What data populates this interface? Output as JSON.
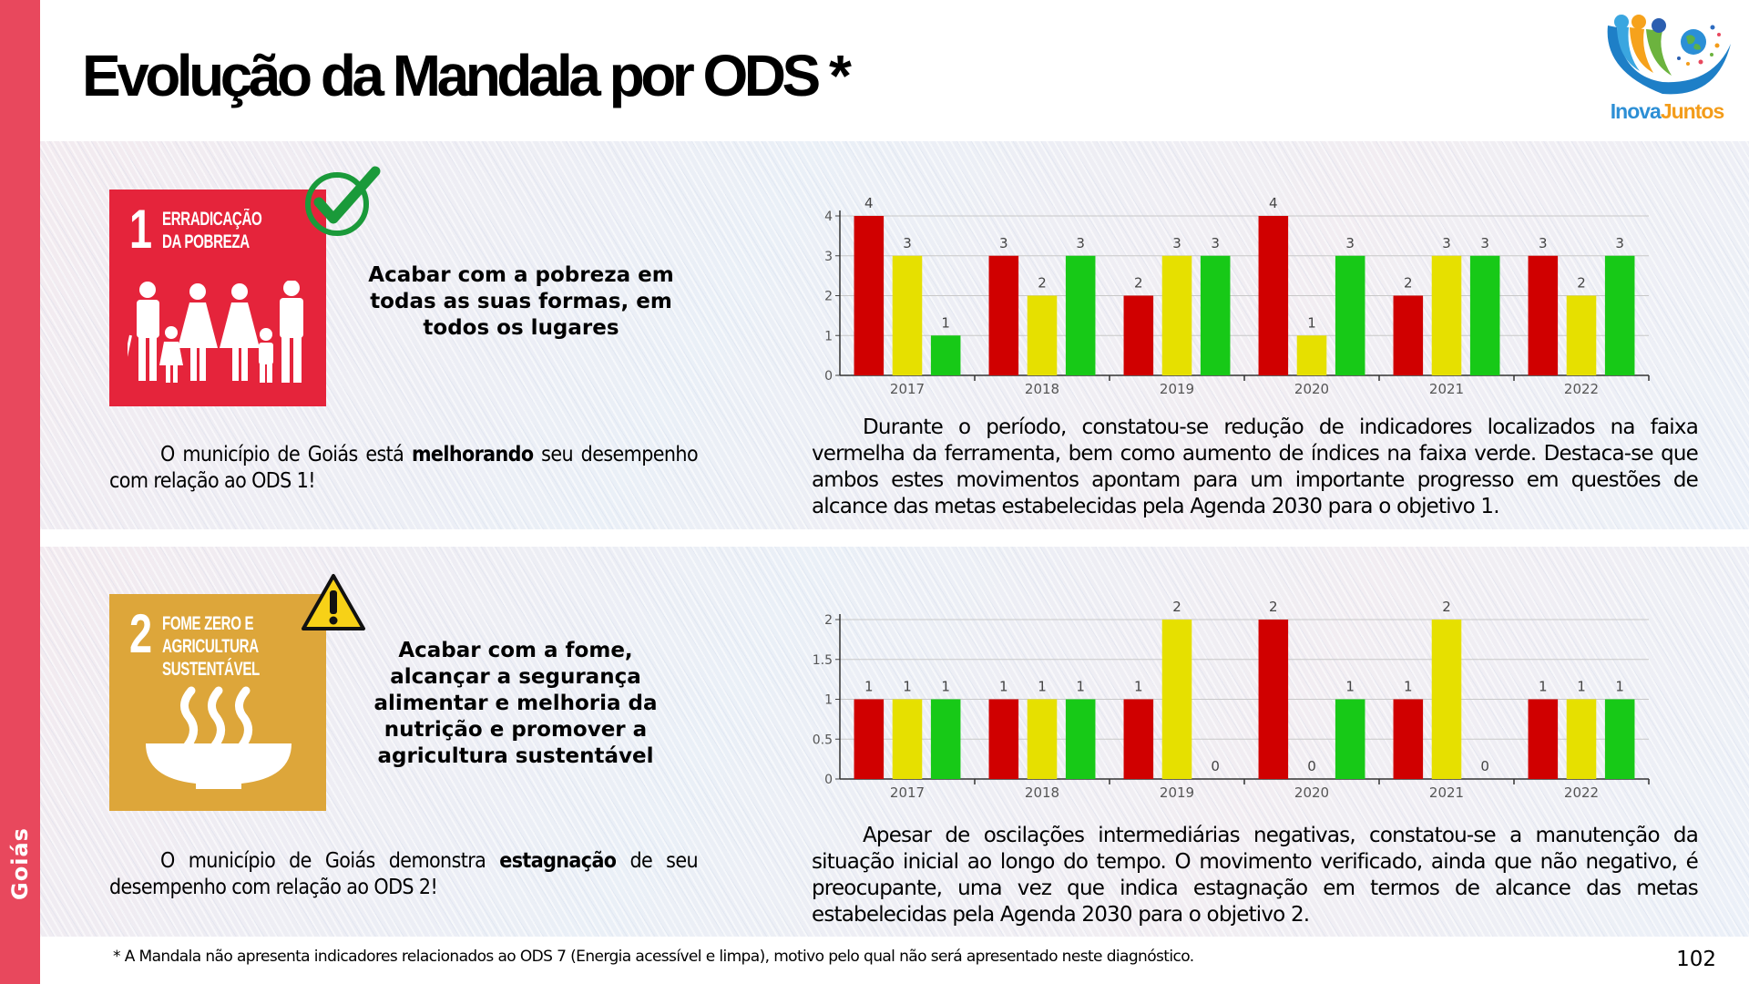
{
  "sidebar": {
    "label": "Goiás",
    "color": "#e8485d"
  },
  "title": "Evolução da Mandala por ODS *",
  "logo": {
    "text_a": "Inova",
    "text_b": "Juntos"
  },
  "colors": {
    "red": "#d00000",
    "yellow": "#e6e000",
    "green": "#17c917",
    "sdg1": "#e5243b",
    "sdg2": "#dda63a"
  },
  "sections": [
    {
      "sdg": {
        "number": "1",
        "name": "ERRADICAÇÃO\nDA POBREZA",
        "icon": "family-icon"
      },
      "status_icon": "check-icon",
      "goal": "Acabar com a pobreza em todas as suas formas, em todos os lugares",
      "verdict": {
        "pre": "O município de Goiás está ",
        "bold": "melhorando",
        "post": " seu desempenho com relação ao ODS 1!"
      },
      "analysis": "Durante o período, constatou-se redução de indicadores localizados na faixa vermelha da ferramenta, bem como aumento de índices na faixa verde. Destaca-se que ambos estes movimentos apontam para um importante progresso em questões de alcance das metas estabelecidas pela Agenda 2030 para o objetivo 1."
    },
    {
      "sdg": {
        "number": "2",
        "name": "FOME ZERO E\nAGRICULTURA\nSUSTENTÁVEL",
        "icon": "bowl-icon"
      },
      "status_icon": "warning-icon",
      "goal": "Acabar com a fome, alcançar a segurança alimentar e melhoria da nutrição e promover a agricultura sustentável",
      "verdict": {
        "pre": "O município de Goiás demonstra ",
        "bold": "estagnação",
        "post": " de seu desempenho com relação ao ODS 2!"
      },
      "analysis": "Apesar de oscilações intermediárias negativas, constatou-se a manutenção da situação inicial ao longo do tempo. O movimento verificado, ainda que não negativo, é preocupante, uma vez que indica estagnação em termos de alcance das metas estabelecidas pela Agenda 2030 para o objetivo 2."
    }
  ],
  "chart_data": [
    {
      "type": "bar",
      "title": "ODS 1",
      "xlabel": "",
      "ylabel": "",
      "categories": [
        "2017",
        "2018",
        "2019",
        "2020",
        "2021",
        "2022"
      ],
      "series": [
        {
          "name": "Vermelho",
          "color": "#d00000",
          "values": [
            4,
            3,
            2,
            4,
            2,
            3
          ]
        },
        {
          "name": "Amarelo",
          "color": "#e6e000",
          "values": [
            3,
            2,
            3,
            1,
            3,
            2
          ]
        },
        {
          "name": "Verde",
          "color": "#17c917",
          "values": [
            1,
            3,
            3,
            3,
            3,
            3
          ]
        }
      ],
      "ylim": [
        0,
        4
      ],
      "yticks": [
        "0",
        "1",
        "2",
        "3",
        "4"
      ],
      "ytick_values": [
        0,
        1,
        2,
        3,
        4
      ],
      "grid": true,
      "legend": "none",
      "data_labels": true
    },
    {
      "type": "bar",
      "title": "ODS 2",
      "xlabel": "",
      "ylabel": "",
      "categories": [
        "2017",
        "2018",
        "2019",
        "2020",
        "2021",
        "2022"
      ],
      "series": [
        {
          "name": "Vermelho",
          "color": "#d00000",
          "values": [
            1,
            1,
            1,
            2,
            1,
            1
          ]
        },
        {
          "name": "Amarelo",
          "color": "#e6e000",
          "values": [
            1,
            1,
            2,
            0,
            2,
            1
          ]
        },
        {
          "name": "Verde",
          "color": "#17c917",
          "values": [
            1,
            1,
            0,
            1,
            0,
            1
          ]
        }
      ],
      "ylim": [
        0,
        2
      ],
      "yticks": [
        "0",
        "0.5",
        "1",
        "1.5",
        "2"
      ],
      "ytick_values": [
        0,
        0.5,
        1,
        1.5,
        2
      ],
      "grid": true,
      "legend": "none",
      "data_labels": true
    }
  ],
  "footnote": "* A Mandala não apresenta indicadores relacionados ao ODS 7 (Energia acessível e limpa), motivo pelo qual não será apresentado neste diagnóstico.",
  "page_number": "102"
}
